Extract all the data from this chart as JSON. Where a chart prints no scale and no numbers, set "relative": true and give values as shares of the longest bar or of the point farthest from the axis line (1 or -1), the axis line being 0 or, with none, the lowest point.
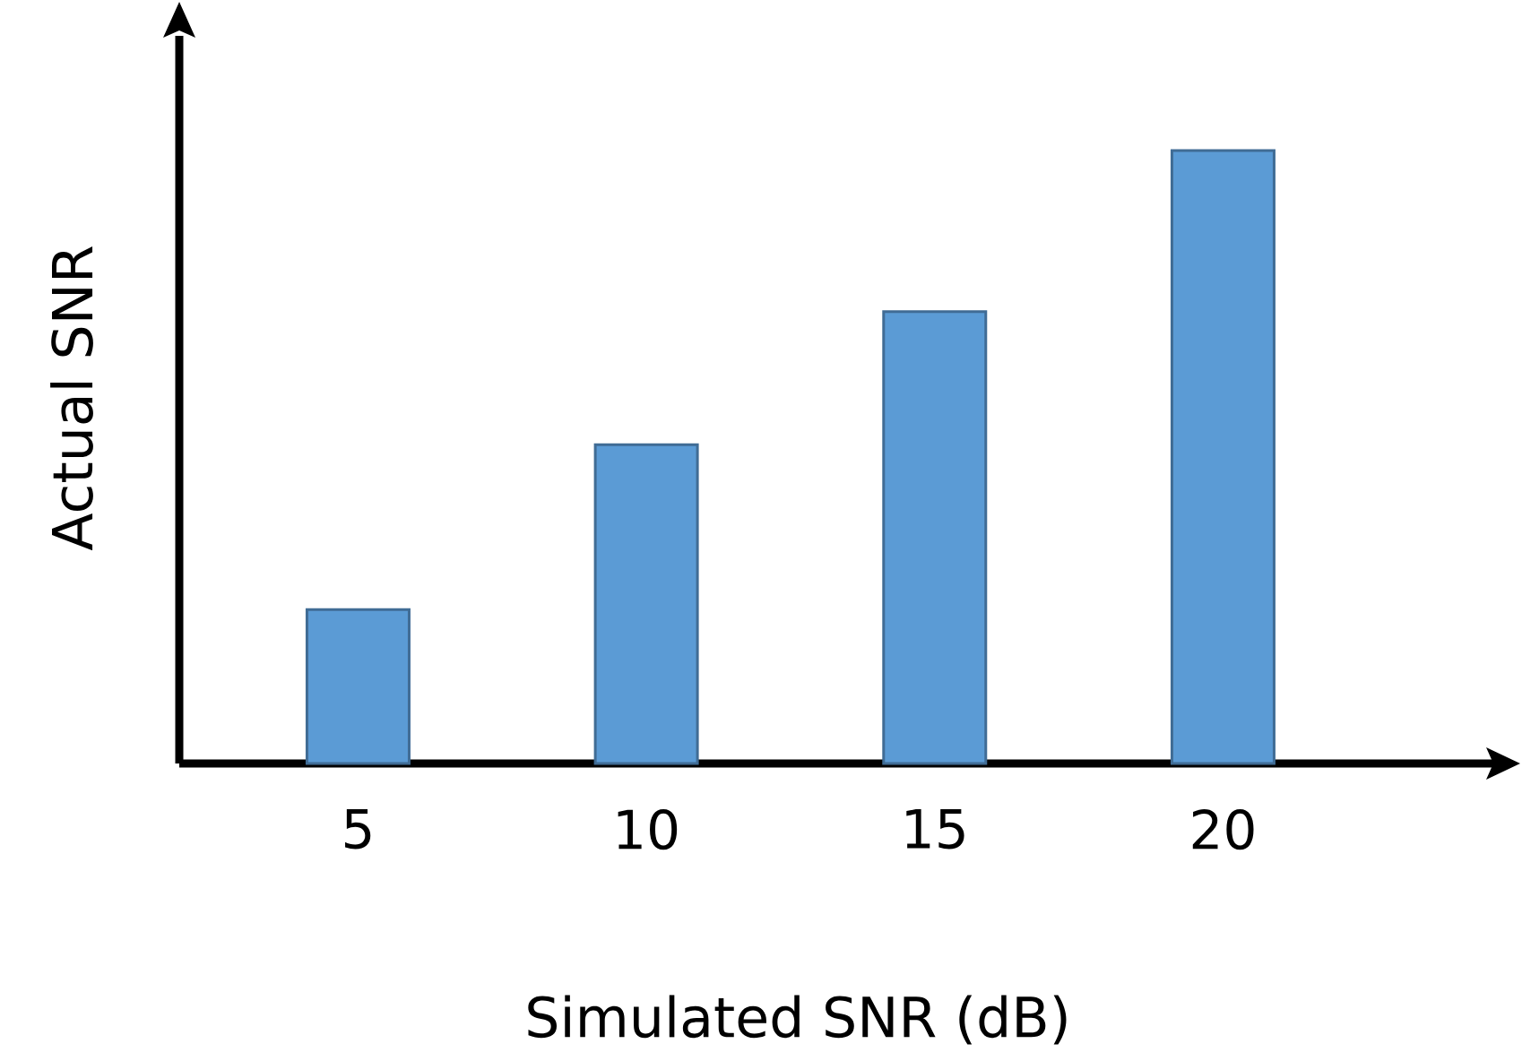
{
  "chart_data": {
    "type": "bar",
    "xlabel": "Simulated SNR (dB)",
    "ylabel": "Actual SNR",
    "categories": [
      "5",
      "10",
      "15",
      "20"
    ],
    "values": [
      0.251,
      0.52,
      0.737,
      1
    ],
    "color": "#5b9bd5",
    "relative": true
  }
}
